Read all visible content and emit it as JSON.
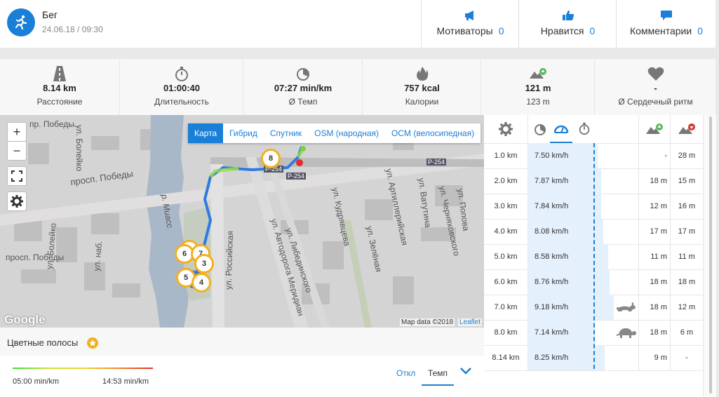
{
  "header": {
    "title": "Бег",
    "datetime": "24.06.18 / 09:30",
    "actions": [
      {
        "label": "Мотиваторы",
        "count": "0",
        "icon": "megaphone-icon"
      },
      {
        "label": "Нравится",
        "count": "0",
        "icon": "thumbs-up-icon"
      },
      {
        "label": "Комментарии",
        "count": "0",
        "icon": "comment-icon"
      }
    ]
  },
  "stats": [
    {
      "value": "8.14 km",
      "caption": "Расстояние",
      "icon": "road-icon"
    },
    {
      "value": "01:00:40",
      "caption": "Длительность",
      "icon": "stopwatch-icon"
    },
    {
      "value": "07:27 min/km",
      "caption": "Ø Темп",
      "icon": "pace-icon"
    },
    {
      "value": "757 kcal",
      "caption": "Калории",
      "icon": "flame-icon"
    },
    {
      "value": "121 m",
      "caption": "123 m",
      "icon": "elevation-up-icon"
    },
    {
      "value": "-",
      "caption": "Ø Сердечный ритм",
      "icon": "heart-icon"
    }
  ],
  "map": {
    "tabs": [
      "Карта",
      "Гибрид",
      "Спутник",
      "OSM (народная)",
      "OCM (велосипедная)"
    ],
    "active_tab": "Карта",
    "zoom_in": "+",
    "zoom_out": "−",
    "labels": {
      "prosp_pobedy_top": "пр. Победы",
      "prosp_pobedy": "просп. Победы",
      "prosp_pobedy_bottom": "просп. Победы",
      "boleiko_top": "ул. Болейко",
      "boleiko_bottom": "ул. Болейко",
      "nab": "ул. наб.",
      "miass": "р. Миасс",
      "rossiyskaya": "ул. Российская",
      "avtodoroga": "ул. Автодорога Меридиан",
      "libedinskogo": "ул. Либединского",
      "kudryavtseva": "ул. Кудрявцева",
      "zelenaya": "ул. Зелёная",
      "artilleriyskaya": "ул. Артиллерийская",
      "vatutina": "ул. Ватутина",
      "cherkasovskogo": "ул. Черняховского",
      "popova": "ул. Попова",
      "r254a": "Р-254",
      "r254b": "Р-254",
      "r254c": "Р-254"
    },
    "markers": [
      "8",
      "6",
      "7",
      "3",
      "5",
      "4",
      "2"
    ],
    "map_data": "Map data ©2018",
    "leaflet": "Leaflet",
    "google": "Google"
  },
  "colorbar": {
    "title": "Цветные полосы",
    "min_pace": "05:00 min/km",
    "max_pace": "14:53 min/km",
    "otkl": "Откл",
    "temp": "Темп"
  },
  "splits": [
    {
      "km": "1.0 km",
      "speed": "7.50 km/h",
      "up": "-",
      "down": "28 m",
      "speed_value": 7.5
    },
    {
      "km": "2.0 km",
      "speed": "7.87 km/h",
      "up": "18 m",
      "down": "15 m",
      "speed_value": 7.87
    },
    {
      "km": "3.0 km",
      "speed": "7.84 km/h",
      "up": "12 m",
      "down": "16 m",
      "speed_value": 7.84
    },
    {
      "km": "4.0 km",
      "speed": "8.08 km/h",
      "up": "17 m",
      "down": "17 m",
      "speed_value": 8.08
    },
    {
      "km": "5.0 km",
      "speed": "8.58 km/h",
      "up": "11 m",
      "down": "11 m",
      "speed_value": 8.58
    },
    {
      "km": "6.0 km",
      "speed": "8.76 km/h",
      "up": "18 m",
      "down": "18 m",
      "speed_value": 8.76
    },
    {
      "km": "7.0 km",
      "speed": "9.18 km/h",
      "up": "18 m",
      "down": "12 m",
      "speed_value": 9.18,
      "badge": "rabbit-icon"
    },
    {
      "km": "8.0 km",
      "speed": "7.14 km/h",
      "up": "18 m",
      "down": "6 m",
      "speed_value": 7.14,
      "badge": "turtle-icon"
    },
    {
      "km": "8.14 km",
      "speed": "8.25 km/h",
      "up": "9 m",
      "down": "-",
      "speed_value": 8.25
    }
  ],
  "colors": {
    "accent": "#1a7fd6",
    "marker": "#f2b01e",
    "route": "#2d7be0"
  }
}
